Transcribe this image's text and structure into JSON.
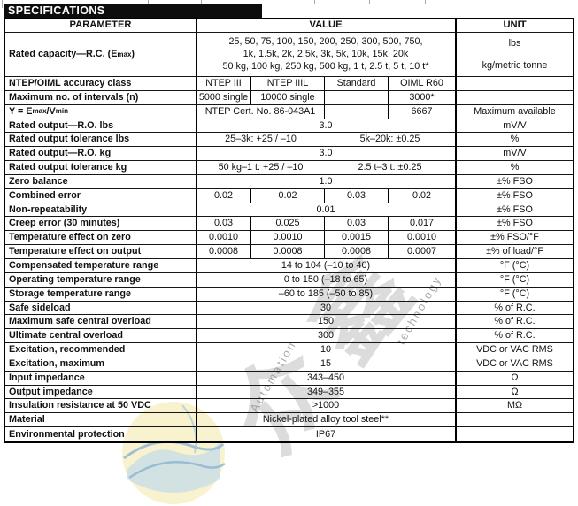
{
  "title": "SPECIFICATIONS",
  "header": {
    "parameter": "PARAMETER",
    "value": "VALUE",
    "unit": "UNIT"
  },
  "table": {
    "rows": [
      {
        "name": "row-rated-capacity",
        "type": "capacity",
        "param": "Rated capacity—R.C. (E~max~)",
        "value_lines": [
          "25, 50, 75, 100, 150, 200, 250, 300, 500, 750,",
          "1k, 1.5k, 2k, 2.5k, 3k, 5k, 10k, 15k, 20k",
          "50 kg, 100 kg, 250 kg, 500 kg, 1 t, 2.5 t, 5 t, 10 t*"
        ],
        "unit_lines": [
          "lbs",
          "kg/metric tonne"
        ]
      },
      {
        "name": "row-accuracy-class",
        "param": "NTEP/OIML accuracy class",
        "dividers": true,
        "cells": [
          {
            "t": "NTEP III",
            "s": 1
          },
          {
            "t": "NTEP IIIL",
            "s": 1
          },
          {
            "t": "Standard",
            "s": 1
          },
          {
            "t": "OIML R60",
            "s": 1
          }
        ],
        "unit": ""
      },
      {
        "name": "row-max-intervals",
        "param": "Maximum no. of intervals (n)",
        "dividers": true,
        "cells": [
          {
            "t": "5000 single",
            "s": 1
          },
          {
            "t": "10000 single",
            "s": 1
          },
          {
            "t": "",
            "s": 1
          },
          {
            "t": "3000*",
            "s": 1
          }
        ],
        "unit": ""
      },
      {
        "name": "row-y-emax-vmin",
        "param": "Y = E~max~/V~min~",
        "dividers": true,
        "cells": [
          {
            "t": "NTEP Cert. No. 86-043A1",
            "s": 2
          },
          {
            "t": "",
            "s": 1
          },
          {
            "t": "6667",
            "s": 1
          }
        ],
        "unit": "Maximum available"
      },
      {
        "name": "row-rated-output-lbs",
        "param": "Rated output—R.O. lbs",
        "dividers": false,
        "cells": [
          {
            "t": "3.0",
            "s": 4
          }
        ],
        "unit": "mV/V"
      },
      {
        "name": "row-output-tolerance-lbs",
        "param": "Rated output tolerance lbs",
        "dividers": false,
        "cells": [
          {
            "t": "25–3k: +25 / –10",
            "s": 2
          },
          {
            "t": "5k–20k: ±0.25",
            "s": 2
          }
        ],
        "unit": "%"
      },
      {
        "name": "row-rated-output-kg",
        "param": "Rated output—R.O. kg",
        "dividers": false,
        "cells": [
          {
            "t": "3.0",
            "s": 4
          }
        ],
        "unit": "mV/V"
      },
      {
        "name": "row-output-tolerance-kg",
        "param": "Rated output tolerance kg",
        "dividers": false,
        "cells": [
          {
            "t": "50 kg–1 t: +25 / –10",
            "s": 2
          },
          {
            "t": "2.5 t–3 t: ±0.25",
            "s": 2
          }
        ],
        "unit": "%"
      },
      {
        "name": "row-zero-balance",
        "param": "Zero balance",
        "dividers": false,
        "cells": [
          {
            "t": "1.0",
            "s": 4
          }
        ],
        "unit": "±% FSO"
      },
      {
        "name": "row-combined-error",
        "param": "Combined error",
        "dividers": true,
        "cells": [
          {
            "t": "0.02",
            "s": 1
          },
          {
            "t": "0.02",
            "s": 1
          },
          {
            "t": "0.03",
            "s": 1
          },
          {
            "t": "0.02",
            "s": 1
          }
        ],
        "unit": "±% FSO"
      },
      {
        "name": "row-non-repeatability",
        "param": "Non-repeatability",
        "dividers": false,
        "cells": [
          {
            "t": "0.01",
            "s": 4
          }
        ],
        "unit": "±% FSO"
      },
      {
        "name": "row-creep-error",
        "param": "Creep error (30 minutes)",
        "dividers": true,
        "cells": [
          {
            "t": "0.03",
            "s": 1
          },
          {
            "t": "0.025",
            "s": 1
          },
          {
            "t": "0.03",
            "s": 1
          },
          {
            "t": "0.017",
            "s": 1
          }
        ],
        "unit": "±% FSO"
      },
      {
        "name": "row-temp-effect-zero",
        "param": "Temperature effect on zero",
        "dividers": true,
        "cells": [
          {
            "t": "0.0010",
            "s": 1
          },
          {
            "t": "0.0010",
            "s": 1
          },
          {
            "t": "0.0015",
            "s": 1
          },
          {
            "t": "0.0010",
            "s": 1
          }
        ],
        "unit": "±% FSO/°F"
      },
      {
        "name": "row-temp-effect-output",
        "param": "Temperature effect on output",
        "dividers": true,
        "cells": [
          {
            "t": "0.0008",
            "s": 1
          },
          {
            "t": "0.0008",
            "s": 1
          },
          {
            "t": "0.0008",
            "s": 1
          },
          {
            "t": "0.0007",
            "s": 1
          }
        ],
        "unit": "±% of load/°F"
      },
      {
        "name": "row-compensated-temp-range",
        "param": "Compensated temperature range",
        "dividers": false,
        "cells": [
          {
            "t": "14 to 104 (–10 to 40)",
            "s": 4
          }
        ],
        "unit": "°F (°C)"
      },
      {
        "name": "row-operating-temp-range",
        "param": "Operating temperature range",
        "dividers": false,
        "cells": [
          {
            "t": "0 to 150 (–18 to 65)",
            "s": 4
          }
        ],
        "unit": "°F (°C)"
      },
      {
        "name": "row-storage-temp-range",
        "param": "Storage temperature range",
        "dividers": false,
        "cells": [
          {
            "t": "–60 to 185 (–50 to 85)",
            "s": 4
          }
        ],
        "unit": "°F (°C)"
      },
      {
        "name": "row-safe-sideload",
        "param": "Safe sideload",
        "dividers": false,
        "cells": [
          {
            "t": "30",
            "s": 4
          }
        ],
        "unit": "% of R.C."
      },
      {
        "name": "row-max-safe-central-overload",
        "param": "Maximum safe central overload",
        "dividers": false,
        "cells": [
          {
            "t": "150",
            "s": 4
          }
        ],
        "unit": "% of R.C."
      },
      {
        "name": "row-ultimate-central-overload",
        "param": "Ultimate central overload",
        "dividers": false,
        "cells": [
          {
            "t": "300",
            "s": 4
          }
        ],
        "unit": "% of R.C."
      },
      {
        "name": "row-excitation-recommended",
        "param": "Excitation, recommended",
        "dividers": false,
        "cells": [
          {
            "t": "10",
            "s": 4
          }
        ],
        "unit": "VDC or VAC RMS"
      },
      {
        "name": "row-excitation-maximum",
        "param": "Excitation, maximum",
        "dividers": false,
        "cells": [
          {
            "t": "15",
            "s": 4
          }
        ],
        "unit": "VDC or VAC RMS"
      },
      {
        "name": "row-input-impedance",
        "param": "Input impedance",
        "dividers": false,
        "cells": [
          {
            "t": "343–450",
            "s": 4
          }
        ],
        "unit": "Ω"
      },
      {
        "name": "row-output-impedance",
        "param": "Output impedance",
        "dividers": false,
        "cells": [
          {
            "t": "349–355",
            "s": 4
          }
        ],
        "unit": "Ω"
      },
      {
        "name": "row-insulation-resistance",
        "param": "Insulation resistance at 50 VDC",
        "dividers": false,
        "cells": [
          {
            "t": ">1000",
            "s": 4
          }
        ],
        "unit": "MΩ"
      },
      {
        "name": "row-material",
        "param": "Material",
        "dividers": false,
        "cells": [
          {
            "t": "Nickel-plated alloy tool steel**",
            "s": 4
          }
        ],
        "unit": ""
      },
      {
        "name": "row-environmental-protection",
        "param": "Environmental protection",
        "dividers": false,
        "cells": [
          {
            "t": "IP67",
            "s": 4
          }
        ],
        "unit": ""
      }
    ]
  },
  "watermark": {
    "chinese": "众鑫",
    "latin_word_1": "Automation",
    "latin_word_2": "technology",
    "colors": {
      "gray": "#9a9a9a",
      "logo_yellow": "#f8f0c2",
      "logo_blue": "#7ca9cf"
    }
  }
}
